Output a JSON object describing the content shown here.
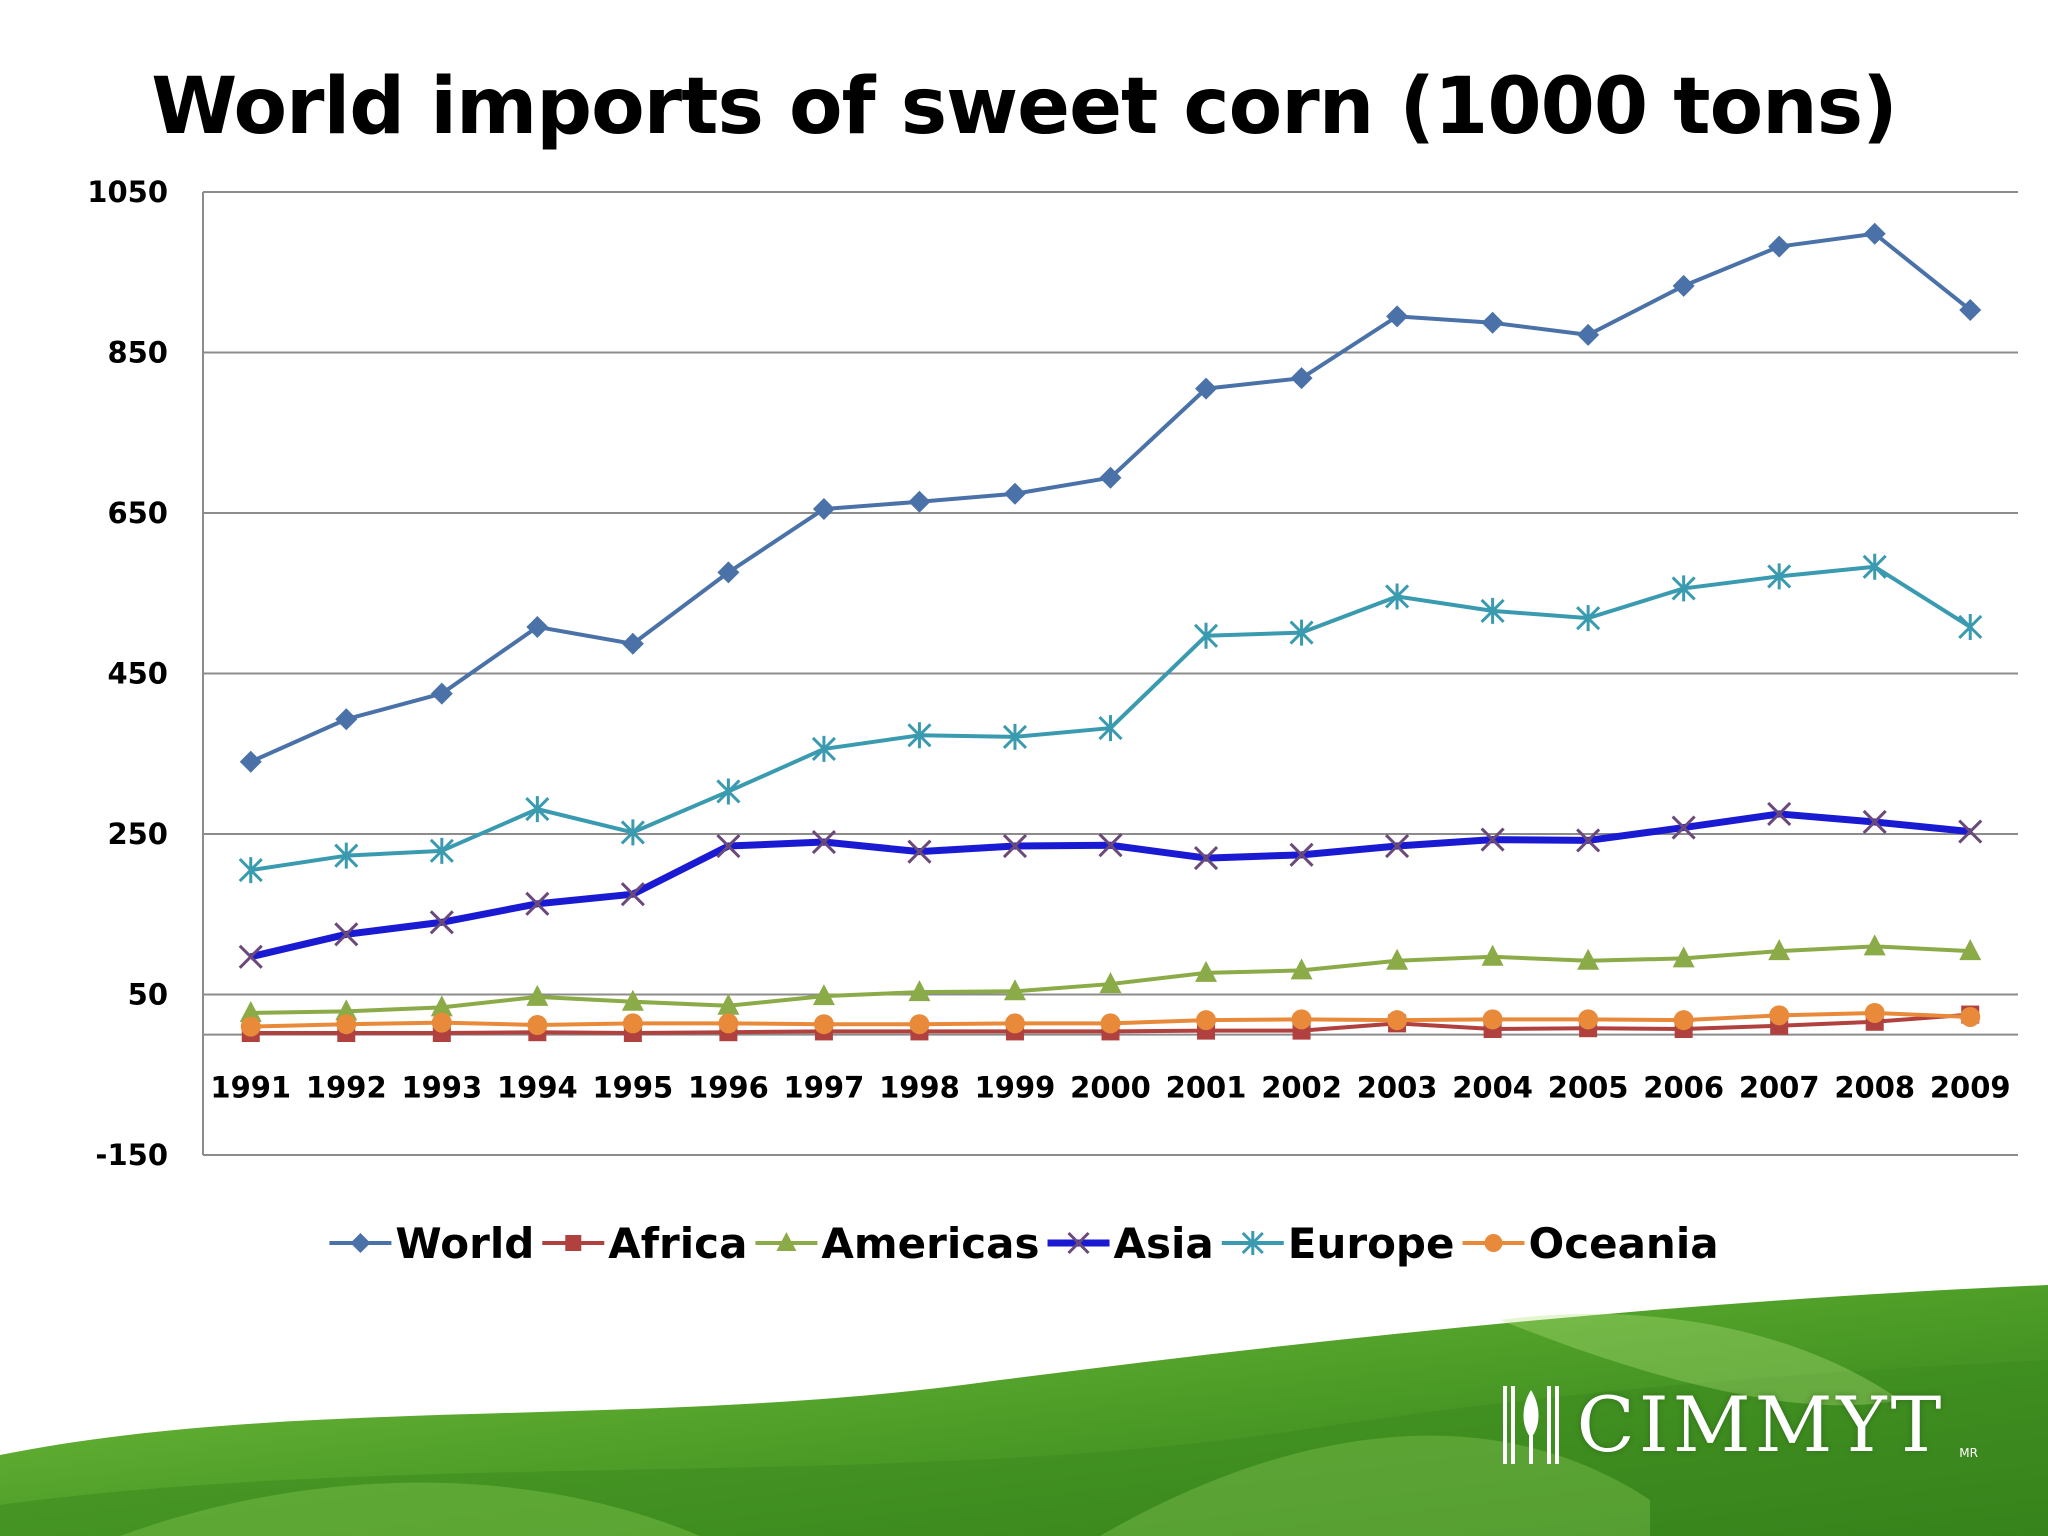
{
  "logo": {
    "text": "CIMMYT",
    "mark": "MR",
    "emblem_icon": "wheat-emblem-icon"
  },
  "colors": {
    "World": "#4a72a8",
    "Africa": "#b0413e",
    "Americas": "#8aab47",
    "Asia": "#1a1ad2",
    "Europe": "#3a9bb0",
    "Oceania": "#e88a3a",
    "background_green": "#4e9e28"
  },
  "chart_data": {
    "type": "line",
    "title": "World imports of sweet corn (1000 tons)",
    "xlabel": "",
    "ylabel": "",
    "ylim": [
      -150,
      1050
    ],
    "yticks": [
      -150,
      50,
      250,
      450,
      650,
      850,
      1050
    ],
    "grid": true,
    "legend_position": "bottom",
    "x": [
      "1991",
      "1992",
      "1993",
      "1994",
      "1995",
      "1996",
      "1997",
      "1998",
      "1999",
      "2000",
      "2001",
      "2002",
      "2003",
      "2004",
      "2005",
      "2006",
      "2007",
      "2008",
      "2009"
    ],
    "series": [
      {
        "name": "World",
        "marker": "diamond",
        "values": [
          340,
          393,
          425,
          508,
          487,
          576,
          655,
          664,
          674,
          694,
          805,
          818,
          895,
          887,
          872,
          933,
          982,
          998,
          903
        ]
      },
      {
        "name": "Africa",
        "marker": "square",
        "values": [
          2,
          2,
          2,
          3,
          2,
          3,
          4,
          4,
          4,
          4,
          5,
          5,
          14,
          7,
          8,
          7,
          11,
          16,
          25
        ]
      },
      {
        "name": "Americas",
        "marker": "triangle",
        "values": [
          27,
          29,
          34,
          47,
          41,
          36,
          48,
          53,
          54,
          63,
          77,
          80,
          92,
          97,
          92,
          95,
          104,
          110,
          104
        ]
      },
      {
        "name": "Asia",
        "marker": "x",
        "values": [
          97,
          125,
          140,
          163,
          175,
          235,
          240,
          228,
          235,
          236,
          220,
          224,
          235,
          243,
          242,
          258,
          275,
          265,
          253
        ]
      },
      {
        "name": "Europe",
        "marker": "star",
        "values": [
          205,
          223,
          229,
          281,
          252,
          303,
          356,
          373,
          371,
          382,
          497,
          501,
          546,
          528,
          519,
          556,
          571,
          583,
          508
        ]
      },
      {
        "name": "Oceania",
        "marker": "circle",
        "values": [
          10,
          13,
          15,
          12,
          14,
          14,
          13,
          13,
          14,
          14,
          18,
          19,
          18,
          19,
          19,
          18,
          24,
          27,
          22
        ]
      }
    ]
  }
}
